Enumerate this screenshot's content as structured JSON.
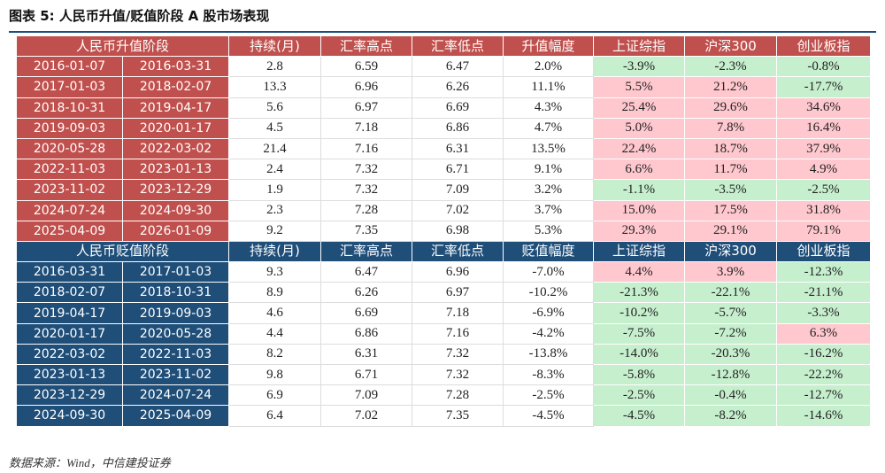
{
  "title": "图表 5:  人民币升值/贬值阶段 A 股市场表现",
  "source": "数据来源：Wind，中信建投证券",
  "sections": [
    {
      "header": [
        "人民币升值阶段",
        "持续(月)",
        "汇率高点",
        "汇率低点",
        "升值幅度",
        "上证综指",
        "沪深300",
        "创业板指"
      ],
      "rows": [
        [
          "2016-01-07",
          "2016-03-31",
          "2.8",
          "6.59",
          "6.47",
          "2.0%",
          "-3.9%",
          "-2.3%",
          "-0.8%"
        ],
        [
          "2017-01-03",
          "2018-02-07",
          "13.3",
          "6.96",
          "6.26",
          "11.1%",
          "5.5%",
          "21.2%",
          "-17.7%"
        ],
        [
          "2018-10-31",
          "2019-04-17",
          "5.6",
          "6.97",
          "6.69",
          "4.3%",
          "25.4%",
          "29.6%",
          "34.6%"
        ],
        [
          "2019-09-03",
          "2020-01-17",
          "4.5",
          "7.18",
          "6.86",
          "4.7%",
          "5.0%",
          "7.8%",
          "16.4%"
        ],
        [
          "2020-05-28",
          "2022-03-02",
          "21.4",
          "7.16",
          "6.31",
          "13.5%",
          "22.4%",
          "18.7%",
          "37.9%"
        ],
        [
          "2022-11-03",
          "2023-01-13",
          "2.4",
          "7.32",
          "6.71",
          "9.1%",
          "6.6%",
          "11.7%",
          "4.9%"
        ],
        [
          "2023-11-02",
          "2023-12-29",
          "1.9",
          "7.32",
          "7.09",
          "3.2%",
          "-1.1%",
          "-3.5%",
          "-2.5%"
        ],
        [
          "2024-07-24",
          "2024-09-30",
          "2.3",
          "7.28",
          "7.02",
          "3.7%",
          "15.0%",
          "17.5%",
          "31.8%"
        ],
        [
          "2025-04-09",
          "2026-01-09",
          "9.2",
          "7.35",
          "6.98",
          "5.3%",
          "29.3%",
          "29.1%",
          "79.1%"
        ]
      ]
    },
    {
      "header": [
        "人民币贬值阶段",
        "持续(月)",
        "汇率高点",
        "汇率低点",
        "贬值幅度",
        "上证综指",
        "沪深300",
        "创业板指"
      ],
      "rows": [
        [
          "2016-03-31",
          "2017-01-03",
          "9.3",
          "6.47",
          "6.96",
          "-7.0%",
          "4.4%",
          "3.9%",
          "-12.3%"
        ],
        [
          "2018-02-07",
          "2018-10-31",
          "8.9",
          "6.26",
          "6.97",
          "-10.2%",
          "-21.3%",
          "-22.1%",
          "-21.1%"
        ],
        [
          "2019-04-17",
          "2019-09-03",
          "4.6",
          "6.69",
          "7.18",
          "-6.9%",
          "-10.2%",
          "-5.7%",
          "-3.3%"
        ],
        [
          "2020-01-17",
          "2020-05-28",
          "4.4",
          "6.86",
          "7.16",
          "-4.2%",
          "-7.5%",
          "-7.2%",
          "6.3%"
        ],
        [
          "2022-03-02",
          "2022-11-03",
          "8.2",
          "6.31",
          "7.32",
          "-13.8%",
          "-14.0%",
          "-20.3%",
          "-16.2%"
        ],
        [
          "2023-01-13",
          "2023-11-02",
          "9.8",
          "6.71",
          "7.32",
          "-8.3%",
          "-5.8%",
          "-12.8%",
          "-22.2%"
        ],
        [
          "2023-12-29",
          "2024-07-24",
          "6.9",
          "7.09",
          "7.28",
          "-2.5%",
          "-2.5%",
          "-0.4%",
          "-12.7%"
        ],
        [
          "2024-09-30",
          "2025-04-09",
          "6.4",
          "7.02",
          "7.35",
          "-4.5%",
          "-4.5%",
          "-8.2%",
          "-14.6%"
        ]
      ]
    }
  ]
}
